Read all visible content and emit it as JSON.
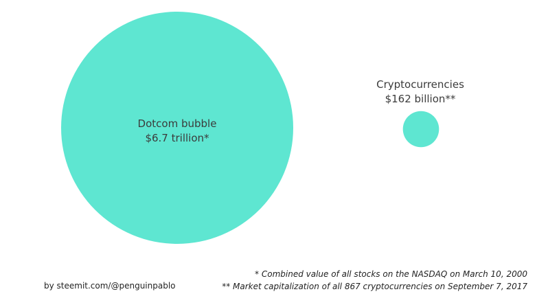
{
  "chart_data": {
    "type": "bubble",
    "colors": {
      "bubble": "#5ee6d1"
    },
    "items": [
      {
        "name": "Dotcom bubble",
        "value_text": "$6.7 trillion*",
        "value": 6700
      },
      {
        "name": "Cryptocurrencies",
        "value_text": "$162 billion**",
        "value": 162
      }
    ],
    "credit": "by steemit.com/@penguinpablo",
    "footnotes": [
      "* Combined value of all stocks on the NASDAQ on March 10, 2000",
      "** Market capitalization of all 867 cryptocurrencies on September 7, 2017"
    ]
  }
}
